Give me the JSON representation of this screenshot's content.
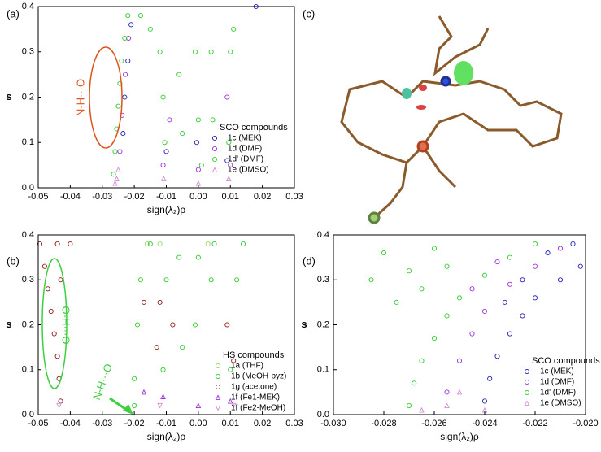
{
  "figure": {
    "molecule_label": "(c)"
  },
  "chart_data": [
    {
      "type": "scatter",
      "panel": "(a)",
      "x_label": "sign(λ₂)ρ",
      "y_label": "s",
      "xlim": [
        -0.05,
        0.03
      ],
      "ylim": [
        0,
        0.4
      ],
      "xticks": [
        -0.05,
        -0.04,
        -0.03,
        -0.02,
        -0.01,
        {
          "value": 0,
          "label": "0.00"
        },
        0.01,
        0.02,
        0.03
      ],
      "yticks": [
        {
          "value": 0,
          "label": "0.0"
        },
        0.1,
        0.2,
        0.3,
        0.4
      ],
      "legend_title": "SCO compounds",
      "legend": "lower right",
      "annotations": [
        {
          "text": "N-H···O",
          "color": "#e0531c"
        }
      ],
      "series": [
        {
          "name": "1c (MEK)",
          "color": "#1f1fb4",
          "marker": "circle",
          "x": [
            -0.0235,
            -0.023,
            -0.022,
            -0.021,
            -0.01,
            0.009,
            0.018,
            -0.0005
          ],
          "y": [
            0.12,
            0.2,
            0.28,
            0.36,
            0.08,
            0.06,
            0.4,
            0.1
          ]
        },
        {
          "name": "1d (DMF)",
          "color": "#9b30d9",
          "marker": "circle",
          "x": [
            -0.0245,
            -0.0238,
            -0.0228,
            -0.0218,
            -0.011,
            -0.009,
            0.0,
            0.01,
            0.009
          ],
          "y": [
            0.08,
            0.16,
            0.25,
            0.33,
            0.05,
            0.15,
            0.04,
            0.05,
            0.2
          ]
        },
        {
          "name": "1d' (DMF)",
          "color": "#2ecc2e",
          "marker": "circle",
          "x": [
            -0.0265,
            -0.026,
            -0.0255,
            -0.025,
            -0.0245,
            -0.024,
            -0.023,
            -0.022,
            -0.018,
            -0.015,
            -0.012,
            -0.011,
            -0.0105,
            -0.006,
            -0.005,
            -0.001,
            0.0,
            0.001,
            0.004,
            0.0045,
            0.01,
            0.0095,
            0.011
          ],
          "y": [
            0.03,
            0.08,
            0.13,
            0.18,
            0.23,
            0.28,
            0.33,
            0.38,
            0.38,
            0.35,
            0.3,
            0.2,
            0.1,
            0.25,
            0.12,
            0.3,
            0.15,
            0.05,
            0.3,
            0.15,
            0.3,
            0.1,
            0.35
          ]
        },
        {
          "name": "1e (DMSO)",
          "color": "#d68bd6",
          "marker": "triangle",
          "x": [
            -0.026,
            -0.025,
            -0.0255,
            -0.0108,
            0.0,
            0.0095
          ],
          "y": [
            0.01,
            0.04,
            0.02,
            0.02,
            0.01,
            0.02
          ]
        }
      ]
    },
    {
      "type": "scatter",
      "panel": "(b)",
      "x_label": "sign(λ₂)ρ",
      "y_label": "s",
      "xlim": [
        -0.05,
        0.03
      ],
      "ylim": [
        0,
        0.4
      ],
      "xticks": [
        -0.05,
        -0.04,
        -0.03,
        -0.02,
        -0.01,
        {
          "value": 0,
          "label": "0.00"
        },
        0.01,
        0.02,
        0.03
      ],
      "yticks": [
        {
          "value": 0,
          "label": "0.0"
        },
        0.1,
        0.2,
        0.3,
        0.4
      ],
      "legend_title": "HS compounds",
      "legend": "lower right",
      "annotations": [
        {
          "text": "O-H···O",
          "color": "#3fcf3f"
        },
        {
          "text": "N-H···O",
          "color": "#3fcf3f"
        }
      ],
      "series": [
        {
          "name": "1a (THF)",
          "color": "#9ad66a",
          "marker": "circle",
          "x": [
            -0.016,
            -0.012,
            0.003
          ],
          "y": [
            0.38,
            0.38,
            0.38
          ]
        },
        {
          "name": "1b (MeOH-pyz)",
          "color": "#2ecc2e",
          "marker": "circle",
          "x": [
            -0.02,
            -0.019,
            -0.018,
            -0.015,
            -0.011,
            -0.01,
            -0.006,
            -0.005,
            -0.001,
            0.0,
            0.004,
            0.005,
            0.01,
            0.012,
            0.014,
            -0.02
          ],
          "y": [
            0.08,
            0.2,
            0.3,
            0.38,
            0.1,
            0.3,
            0.35,
            0.15,
            0.2,
            0.35,
            0.3,
            0.38,
            0.1,
            0.3,
            0.38,
            0.02
          ]
        },
        {
          "name": "1g (acetone)",
          "color": "#8b1a1a",
          "marker": "circle",
          "x": [
            -0.043,
            -0.0435,
            -0.044,
            -0.045,
            -0.046,
            -0.047,
            -0.048,
            -0.0495,
            -0.044,
            -0.04,
            -0.043,
            -0.012,
            -0.013,
            -0.008,
            0.009,
            0.011,
            -0.017
          ],
          "y": [
            0.03,
            0.08,
            0.13,
            0.18,
            0.23,
            0.28,
            0.33,
            0.38,
            0.38,
            0.38,
            0.3,
            0.25,
            0.15,
            0.2,
            0.2,
            0.12,
            0.25
          ]
        },
        {
          "name": "1f (Fe1-MEK)",
          "color": "#9b30d9",
          "marker": "triangle",
          "x": [
            -0.017,
            -0.011,
            0.0,
            0.01
          ],
          "y": [
            0.05,
            0.04,
            0.02,
            0.03
          ]
        },
        {
          "name": "1f (Fe2-MeOH)",
          "color": "#d68bd6",
          "marker": "triangle-down",
          "x": [
            -0.0435,
            -0.012,
            0.011
          ],
          "y": [
            0.02,
            0.02,
            0.02
          ]
        }
      ]
    },
    {
      "type": "scatter",
      "panel": "(d)",
      "x_label": "sign(λ₂)ρ",
      "y_label": "s",
      "xlim": [
        -0.03,
        -0.02
      ],
      "ylim": [
        0,
        0.4
      ],
      "xticks": [
        {
          "value": -0.03,
          "label": "-0.030"
        },
        -0.028,
        -0.026,
        -0.024,
        -0.022,
        {
          "value": -0.02,
          "label": "-0.020"
        }
      ],
      "yticks": [
        {
          "value": 0,
          "label": "0.0"
        },
        0.1,
        0.2,
        0.3,
        0.4
      ],
      "legend_title": "SCO compounds",
      "legend": "lower right",
      "annotations": [],
      "series": [
        {
          "name": "1c (MEK)",
          "color": "#1f1fb4",
          "marker": "circle",
          "x": [
            -0.024,
            -0.0238,
            -0.0235,
            -0.023,
            -0.0225,
            -0.022,
            -0.021,
            -0.0202,
            -0.0232,
            -0.0225,
            -0.0215,
            -0.0205
          ],
          "y": [
            0.03,
            0.08,
            0.13,
            0.18,
            0.22,
            0.26,
            0.3,
            0.33,
            0.25,
            0.3,
            0.36,
            0.38
          ]
        },
        {
          "name": "1d (DMF)",
          "color": "#9b30d9",
          "marker": "circle",
          "x": [
            -0.0255,
            -0.025,
            -0.0245,
            -0.024,
            -0.023,
            -0.022,
            -0.021,
            -0.0245,
            -0.0235
          ],
          "y": [
            0.05,
            0.12,
            0.18,
            0.23,
            0.29,
            0.33,
            0.37,
            0.28,
            0.34
          ]
        },
        {
          "name": "1d' (DMF)",
          "color": "#2ecc2e",
          "marker": "circle",
          "x": [
            -0.027,
            -0.0268,
            -0.0265,
            -0.026,
            -0.0255,
            -0.025,
            -0.024,
            -0.023,
            -0.022,
            -0.0285,
            -0.028,
            -0.0275,
            -0.027,
            -0.026,
            -0.0255,
            -0.0265
          ],
          "y": [
            0.02,
            0.07,
            0.12,
            0.17,
            0.22,
            0.26,
            0.31,
            0.35,
            0.38,
            0.3,
            0.36,
            0.25,
            0.32,
            0.37,
            0.33,
            0.28
          ]
        },
        {
          "name": "1e (DMSO)",
          "color": "#d68bd6",
          "marker": "triangle",
          "x": [
            -0.0265,
            -0.0255,
            -0.025,
            -0.024
          ],
          "y": [
            0.01,
            0.02,
            0.05,
            0.01
          ]
        }
      ]
    }
  ]
}
